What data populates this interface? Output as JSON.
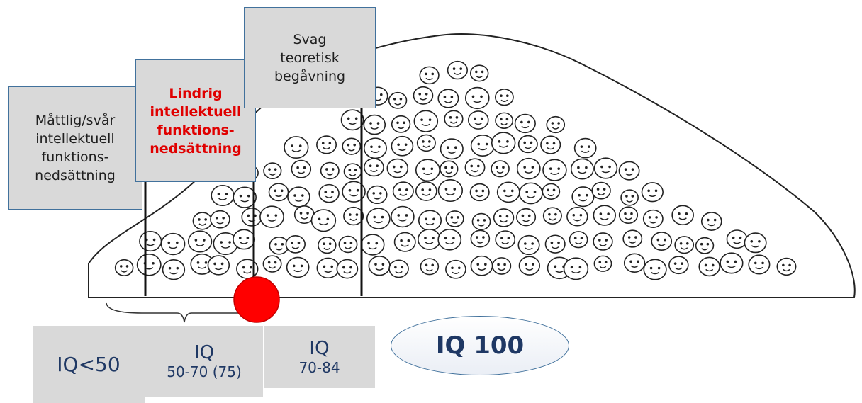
{
  "category_boxes": [
    {
      "lines": [
        "Måttlig/svår",
        "intellektuell",
        "funktions-",
        "nedsättning"
      ]
    },
    {
      "lines": [
        "Lindrig",
        "intellektuell",
        "funktions-",
        "nedsättning"
      ]
    },
    {
      "lines": [
        "Svag",
        "teoretisk",
        "begåvning"
      ]
    }
  ],
  "iq_boxes": [
    {
      "lines": [
        "IQ<50"
      ]
    },
    {
      "lines": [
        "IQ",
        "50-70 (75)"
      ]
    },
    {
      "lines": [
        "IQ",
        "70-84"
      ]
    }
  ],
  "average": "IQ 100"
}
